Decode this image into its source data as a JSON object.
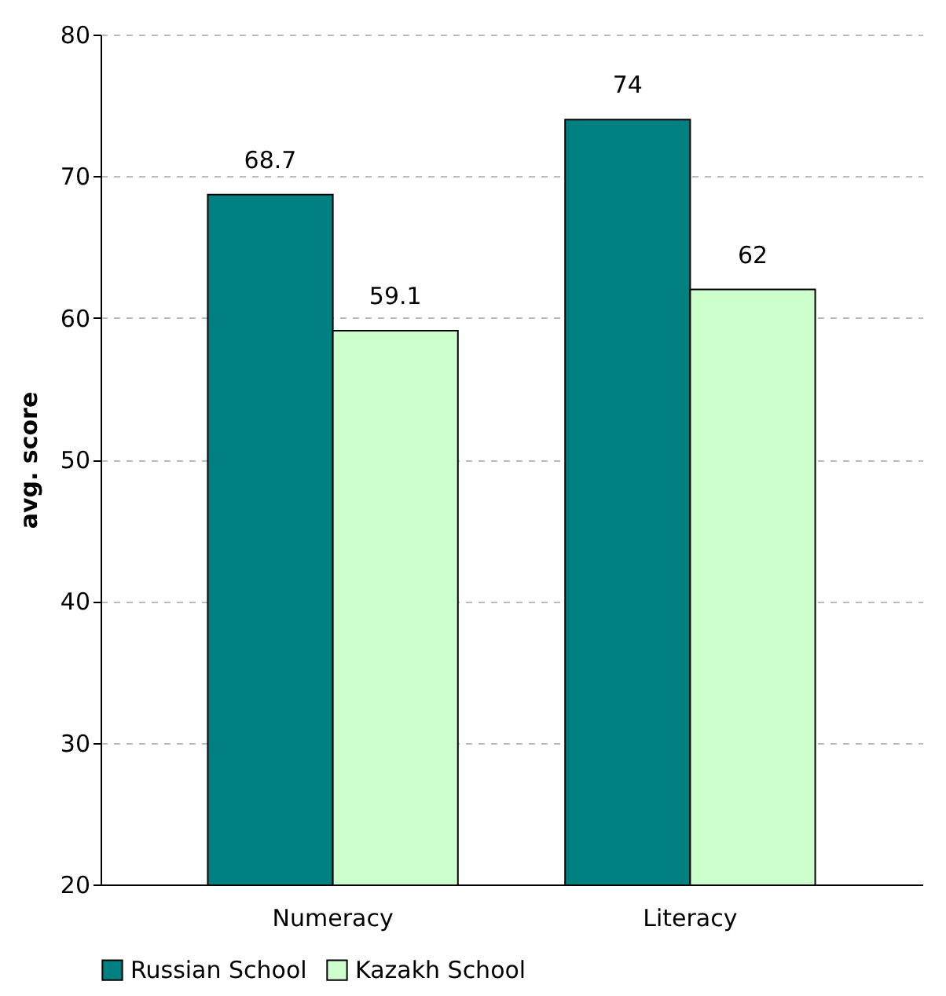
{
  "chart_data": {
    "type": "bar",
    "ylabel": "avg. score",
    "categories": [
      "Numeracy",
      "Literacy"
    ],
    "series": [
      {
        "name": "Russian School",
        "color": "#008080",
        "values": [
          68.7,
          74
        ]
      },
      {
        "name": "Kazakh School",
        "color": "#ccffcc",
        "values": [
          59.1,
          62
        ]
      }
    ],
    "ylim": [
      20,
      80
    ],
    "yticks": [
      20,
      30,
      40,
      50,
      60,
      70,
      80
    ],
    "grid": "y",
    "legend": "bottom",
    "data_labels": true
  }
}
